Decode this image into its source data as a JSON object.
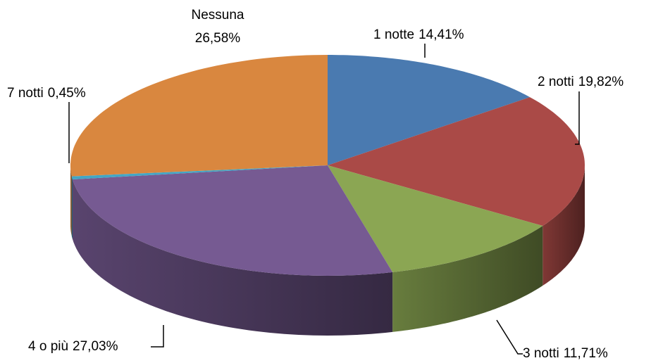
{
  "chart_data": {
    "type": "pie3d",
    "categories": [
      "1 notte",
      "2 notti",
      "3 notti",
      "4 o più",
      "7 notti",
      "Nessuna"
    ],
    "values": [
      14.41,
      19.82,
      11.71,
      27.03,
      0.45,
      26.58
    ],
    "value_labels": [
      "14,41%",
      "19,82%",
      "11,71%",
      "27,03%",
      "0,45%",
      "26,58%"
    ],
    "colors": [
      "#4a7ab0",
      "#aa4a47",
      "#8ba653",
      "#765a92",
      "#43a6c5",
      "#d9873f"
    ]
  }
}
